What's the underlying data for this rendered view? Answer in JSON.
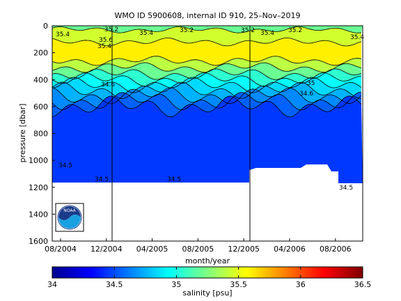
{
  "chart_data": {
    "type": "heatmap",
    "title": "WMO ID 5900608, internal ID 910, 25–Nov–2019",
    "xlabel": "month/year",
    "ylabel": "pressure [dbar]",
    "x_tick_labels": [
      "08/2004",
      "12/2004",
      "04/2005",
      "08/2005",
      "12/2005",
      "04/2006",
      "08/2006"
    ],
    "y_tick_labels": [
      "0",
      "200",
      "400",
      "600",
      "800",
      "1000",
      "1200",
      "1400",
      "1600"
    ],
    "ylim": [
      1600,
      0
    ],
    "y_reversed": true,
    "vertical_markers": [
      "12/2004",
      "12/2005"
    ],
    "colorbar": {
      "label": "salinity [psu]",
      "tick_labels": [
        "34",
        "34.5",
        "35",
        "35.5",
        "36",
        "36.5"
      ],
      "range": [
        34,
        36.5
      ],
      "colormap": "jet"
    },
    "salinity_bands": [
      {
        "from_dbar": 0,
        "to_dbar": 30,
        "salinity": 35.2
      },
      {
        "from_dbar": 30,
        "to_dbar": 120,
        "salinity": 35.45
      },
      {
        "from_dbar": 120,
        "to_dbar": 260,
        "salinity": 35.6
      },
      {
        "from_dbar": 260,
        "to_dbar": 310,
        "salinity": 35.4
      },
      {
        "from_dbar": 310,
        "to_dbar": 360,
        "salinity": 35.2
      },
      {
        "from_dbar": 360,
        "to_dbar": 400,
        "salinity": 35.05
      },
      {
        "from_dbar": 400,
        "to_dbar": 440,
        "salinity": 34.95
      },
      {
        "from_dbar": 440,
        "to_dbar": 480,
        "salinity": 34.85
      },
      {
        "from_dbar": 480,
        "to_dbar": 520,
        "salinity": 34.75
      },
      {
        "from_dbar": 520,
        "to_dbar": 560,
        "salinity": 34.65
      },
      {
        "from_dbar": 560,
        "to_dbar": 600,
        "salinity": 34.55
      },
      {
        "from_dbar": 600,
        "to_dbar": 1170,
        "salinity": 34.45
      }
    ],
    "contour_labels": [
      "35.6",
      "35.4",
      "35.2",
      "35.4",
      "35.2",
      "35.2",
      "35.4",
      "35.2",
      "35.4",
      "35.4",
      "35",
      "34.6",
      "34.6",
      "34.5",
      "34.5",
      "34.5",
      "34.5"
    ]
  },
  "logo": {
    "text": "NOAA"
  },
  "colors": {
    "data_gap": "#ffffff",
    "axis": "#000000"
  }
}
